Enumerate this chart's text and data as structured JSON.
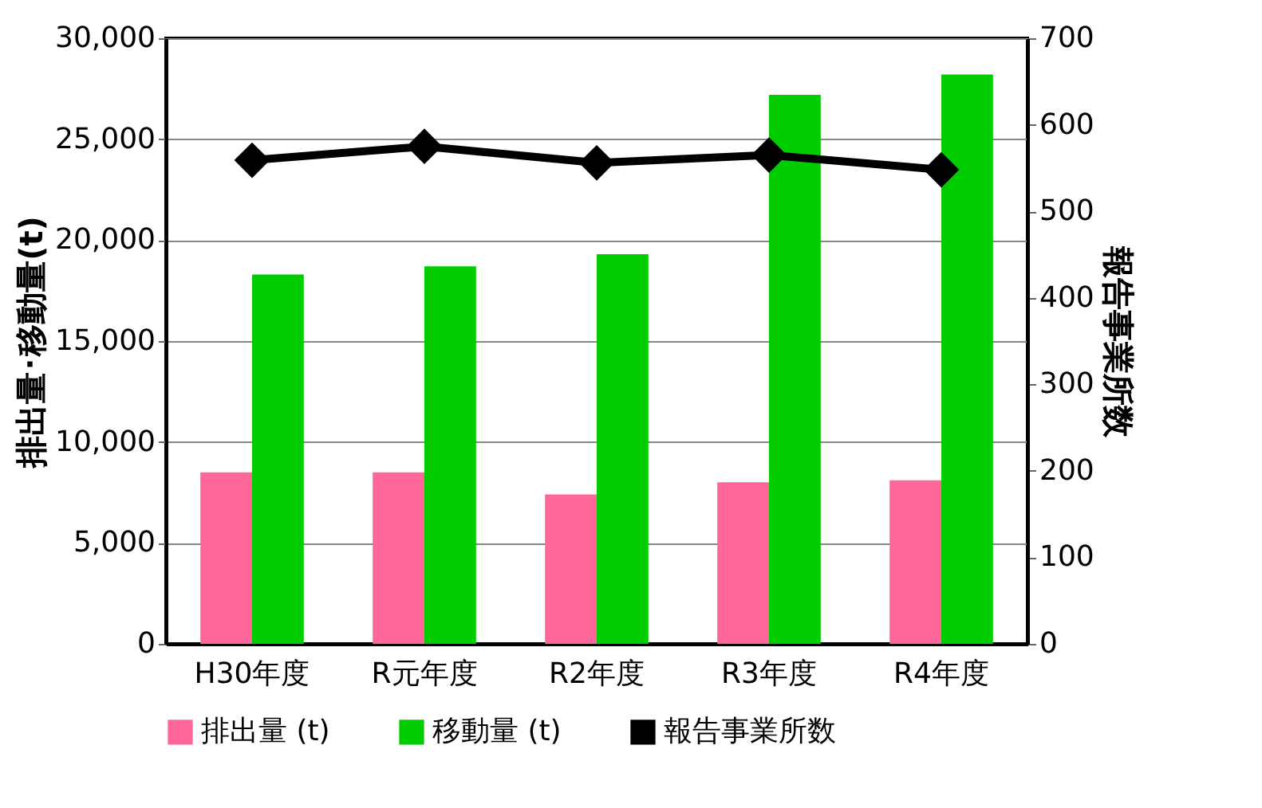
{
  "chart_data": {
    "type": "bar",
    "categories": [
      "H30年度",
      "R元年度",
      "R2年度",
      "R3年度",
      "R4年度"
    ],
    "series": [
      {
        "name": "排出量 (t)",
        "color": "#ff6699",
        "values": [
          8500,
          8500,
          7400,
          8000,
          8100
        ]
      },
      {
        "name": "移動量 (t)",
        "color": "#00cc00",
        "values": [
          18300,
          18700,
          19300,
          27200,
          28200
        ]
      },
      {
        "name": "報告事業所数",
        "color": "#000000",
        "type": "line",
        "axis": "y2",
        "values": [
          559,
          575,
          556,
          565,
          548
        ]
      }
    ],
    "ylabel": "排出量･移動量(t)",
    "y2label": "報告事業所数",
    "ylim": [
      0,
      30000
    ],
    "yticks": [
      0,
      {
        "value": 5000,
        "label": "5,000"
      },
      {
        "value": 10000,
        "label": "10,000"
      },
      {
        "value": 15000,
        "label": "15,000"
      },
      {
        "value": 20000,
        "label": "20,000"
      },
      {
        "value": 25000,
        "label": "25,000"
      },
      {
        "value": 30000,
        "label": "30,000"
      }
    ],
    "y2lim": [
      0,
      700
    ],
    "y2ticks": [
      0,
      100,
      200,
      300,
      400,
      500,
      600,
      700
    ],
    "grid": "y",
    "legend": "bottom",
    "marker": "diamond",
    "line_style": "solid"
  }
}
